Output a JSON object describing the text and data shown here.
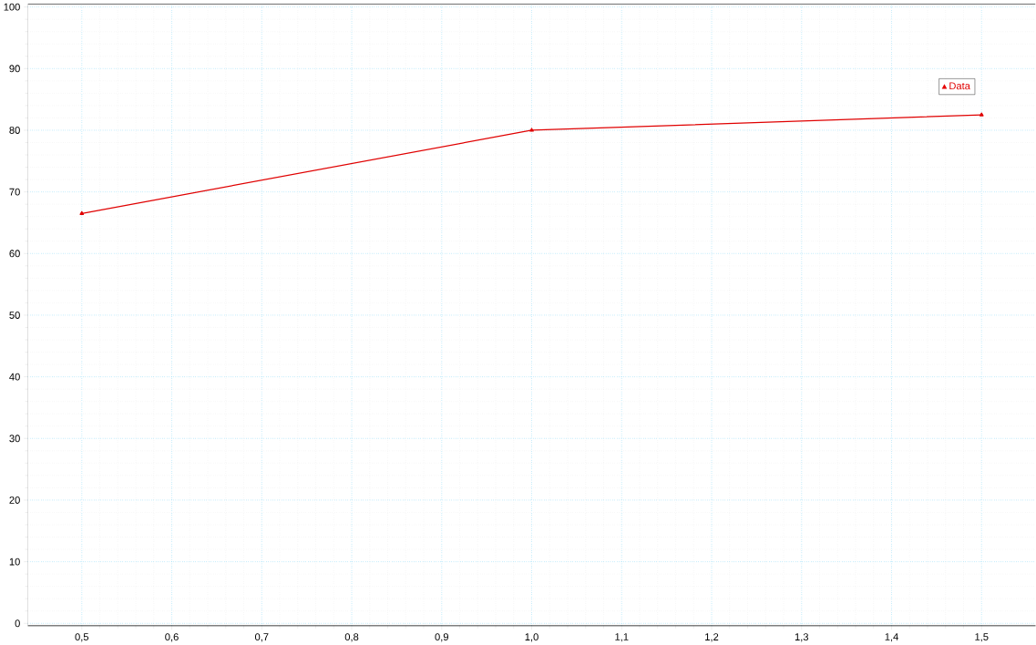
{
  "chart_data": {
    "type": "line",
    "x": [
      0.5,
      1.0,
      1.5
    ],
    "series": [
      {
        "name": "Data",
        "color": "#e00000",
        "values": [
          66.5,
          80,
          82.5
        ]
      }
    ],
    "xlim": [
      0.44,
      1.56
    ],
    "ylim": [
      -0.4,
      100.5
    ],
    "xticks": [
      {
        "value": 0.5,
        "label": "0,5"
      },
      {
        "value": 0.6,
        "label": "0,6"
      },
      {
        "value": 0.7,
        "label": "0,7"
      },
      {
        "value": 0.8,
        "label": "0,8"
      },
      {
        "value": 0.9,
        "label": "0,9"
      },
      {
        "value": 1.0,
        "label": "1,0"
      },
      {
        "value": 1.1,
        "label": "1,1"
      },
      {
        "value": 1.2,
        "label": "1,2"
      },
      {
        "value": 1.3,
        "label": "1,3"
      },
      {
        "value": 1.4,
        "label": "1,4"
      },
      {
        "value": 1.5,
        "label": "1,5"
      }
    ],
    "yticks": [
      0,
      10,
      20,
      30,
      40,
      50,
      60,
      70,
      80,
      90,
      100
    ],
    "grid": true,
    "legend": "top right",
    "marker": "triangle",
    "line_style": "solid"
  }
}
